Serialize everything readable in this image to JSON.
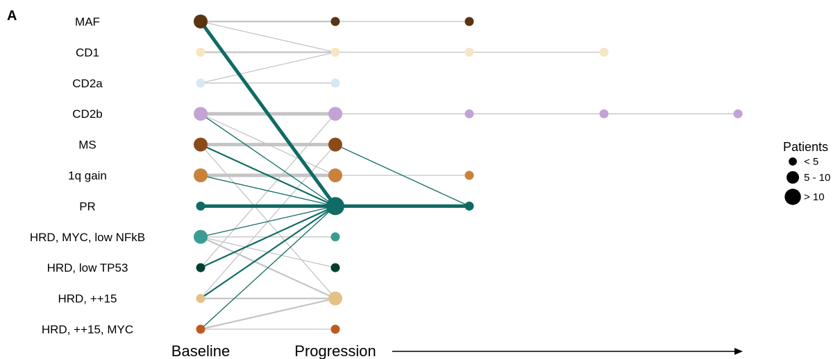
{
  "panel_letter": "A",
  "chart_data": {
    "type": "network",
    "title": "",
    "x_stages": [
      "Baseline",
      "Progression"
    ],
    "progression_arrow": true,
    "subtypes": [
      {
        "name": "MAF",
        "color": "#5a3412"
      },
      {
        "name": "CD1",
        "color": "#f7e6c4"
      },
      {
        "name": "CD2a",
        "color": "#d6e8f2"
      },
      {
        "name": "CD2b",
        "color": "#c3a3d4"
      },
      {
        "name": "MS",
        "color": "#8a4a1a"
      },
      {
        "name": "1q gain",
        "color": "#c9823c"
      },
      {
        "name": "PR",
        "color": "#0f6b63"
      },
      {
        "name": "HRD, MYC, low NFkB",
        "color": "#3a9d93"
      },
      {
        "name": "HRD, low TP53",
        "color": "#053d32"
      },
      {
        "name": "HRD, ++15",
        "color": "#e3c285"
      },
      {
        "name": "HRD, ++15, MYC",
        "color": "#bf5a1f"
      }
    ],
    "nodes": [
      {
        "row": 0,
        "stage": 0,
        "size": "5 - 10"
      },
      {
        "row": 0,
        "stage": 1,
        "size": "< 5"
      },
      {
        "row": 0,
        "stage": 2,
        "size": "< 5"
      },
      {
        "row": 1,
        "stage": 0,
        "size": "< 5"
      },
      {
        "row": 1,
        "stage": 1,
        "size": "< 5"
      },
      {
        "row": 1,
        "stage": 2,
        "size": "< 5"
      },
      {
        "row": 1,
        "stage": 3,
        "size": "< 5"
      },
      {
        "row": 2,
        "stage": 0,
        "size": "< 5"
      },
      {
        "row": 2,
        "stage": 1,
        "size": "< 5"
      },
      {
        "row": 3,
        "stage": 0,
        "size": "5 - 10"
      },
      {
        "row": 3,
        "stage": 1,
        "size": "5 - 10"
      },
      {
        "row": 3,
        "stage": 2,
        "size": "< 5"
      },
      {
        "row": 3,
        "stage": 3,
        "size": "< 5"
      },
      {
        "row": 3,
        "stage": 4,
        "size": "< 5"
      },
      {
        "row": 4,
        "stage": 0,
        "size": "5 - 10"
      },
      {
        "row": 4,
        "stage": 1,
        "size": "5 - 10"
      },
      {
        "row": 5,
        "stage": 0,
        "size": "5 - 10"
      },
      {
        "row": 5,
        "stage": 1,
        "size": "5 - 10"
      },
      {
        "row": 5,
        "stage": 2,
        "size": "< 5"
      },
      {
        "row": 6,
        "stage": 0,
        "size": "< 5"
      },
      {
        "row": 6,
        "stage": 1,
        "size": "> 10"
      },
      {
        "row": 6,
        "stage": 2,
        "size": "< 5"
      },
      {
        "row": 7,
        "stage": 0,
        "size": "5 - 10"
      },
      {
        "row": 7,
        "stage": 1,
        "size": "< 5"
      },
      {
        "row": 8,
        "stage": 0,
        "size": "< 5"
      },
      {
        "row": 8,
        "stage": 1,
        "size": "< 5"
      },
      {
        "row": 9,
        "stage": 0,
        "size": "< 5"
      },
      {
        "row": 9,
        "stage": 1,
        "size": "5 - 10"
      },
      {
        "row": 10,
        "stage": 0,
        "size": "< 5"
      },
      {
        "row": 10,
        "stage": 1,
        "size": "< 5"
      }
    ],
    "transitions": [
      {
        "from": [
          0,
          0
        ],
        "to": [
          0,
          1
        ],
        "kind": "same",
        "weight": "medium"
      },
      {
        "from": [
          0,
          1
        ],
        "to": [
          0,
          2
        ],
        "kind": "same",
        "weight": "light"
      },
      {
        "from": [
          0,
          0
        ],
        "to": [
          6,
          1
        ],
        "kind": "to_pr",
        "weight": "heavy"
      },
      {
        "from": [
          1,
          0
        ],
        "to": [
          1,
          1
        ],
        "kind": "same",
        "weight": "medium"
      },
      {
        "from": [
          1,
          1
        ],
        "to": [
          1,
          2
        ],
        "kind": "same",
        "weight": "light"
      },
      {
        "from": [
          1,
          2
        ],
        "to": [
          1,
          3
        ],
        "kind": "same",
        "weight": "light"
      },
      {
        "from": [
          0,
          0
        ],
        "to": [
          1,
          1
        ],
        "kind": "cross",
        "weight": "light"
      },
      {
        "from": [
          2,
          0
        ],
        "to": [
          1,
          1
        ],
        "kind": "cross",
        "weight": "light"
      },
      {
        "from": [
          2,
          0
        ],
        "to": [
          2,
          1
        ],
        "kind": "same",
        "weight": "light"
      },
      {
        "from": [
          3,
          0
        ],
        "to": [
          3,
          1
        ],
        "kind": "same",
        "weight": "heavy"
      },
      {
        "from": [
          3,
          1
        ],
        "to": [
          3,
          2
        ],
        "kind": "same",
        "weight": "light"
      },
      {
        "from": [
          3,
          2
        ],
        "to": [
          3,
          3
        ],
        "kind": "same",
        "weight": "light"
      },
      {
        "from": [
          3,
          3
        ],
        "to": [
          3,
          4
        ],
        "kind": "same",
        "weight": "light"
      },
      {
        "from": [
          3,
          0
        ],
        "to": [
          6,
          1
        ],
        "kind": "to_pr",
        "weight": "light"
      },
      {
        "from": [
          3,
          0
        ],
        "to": [
          5,
          1
        ],
        "kind": "cross",
        "weight": "light"
      },
      {
        "from": [
          4,
          0
        ],
        "to": [
          4,
          1
        ],
        "kind": "same",
        "weight": "heavy"
      },
      {
        "from": [
          4,
          0
        ],
        "to": [
          6,
          1
        ],
        "kind": "to_pr",
        "weight": "medium"
      },
      {
        "from": [
          4,
          0
        ],
        "to": [
          9,
          1
        ],
        "kind": "cross",
        "weight": "light"
      },
      {
        "from": [
          4,
          1
        ],
        "to": [
          6,
          2
        ],
        "kind": "to_pr",
        "weight": "light"
      },
      {
        "from": [
          5,
          0
        ],
        "to": [
          5,
          1
        ],
        "kind": "same",
        "weight": "heavy"
      },
      {
        "from": [
          5,
          0
        ],
        "to": [
          6,
          1
        ],
        "kind": "to_pr",
        "weight": "light"
      },
      {
        "from": [
          5,
          1
        ],
        "to": [
          5,
          2
        ],
        "kind": "same",
        "weight": "light"
      },
      {
        "from": [
          6,
          0
        ],
        "to": [
          6,
          1
        ],
        "kind": "same_pr",
        "weight": "heavy"
      },
      {
        "from": [
          6,
          1
        ],
        "to": [
          6,
          2
        ],
        "kind": "same_pr",
        "weight": "heavy"
      },
      {
        "from": [
          7,
          0
        ],
        "to": [
          6,
          1
        ],
        "kind": "to_pr",
        "weight": "light"
      },
      {
        "from": [
          7,
          0
        ],
        "to": [
          7,
          1
        ],
        "kind": "same",
        "weight": "light"
      },
      {
        "from": [
          7,
          0
        ],
        "to": [
          8,
          1
        ],
        "kind": "cross",
        "weight": "light"
      },
      {
        "from": [
          7,
          0
        ],
        "to": [
          9,
          1
        ],
        "kind": "cross",
        "weight": "medium"
      },
      {
        "from": [
          8,
          0
        ],
        "to": [
          6,
          1
        ],
        "kind": "to_pr",
        "weight": "medium"
      },
      {
        "from": [
          8,
          0
        ],
        "to": [
          3,
          1
        ],
        "kind": "cross",
        "weight": "light"
      },
      {
        "from": [
          9,
          0
        ],
        "to": [
          6,
          1
        ],
        "kind": "to_pr",
        "weight": "medium"
      },
      {
        "from": [
          9,
          0
        ],
        "to": [
          9,
          1
        ],
        "kind": "same",
        "weight": "medium"
      },
      {
        "from": [
          9,
          0
        ],
        "to": [
          4,
          1
        ],
        "kind": "cross",
        "weight": "light"
      },
      {
        "from": [
          10,
          0
        ],
        "to": [
          6,
          1
        ],
        "kind": "to_pr",
        "weight": "light"
      },
      {
        "from": [
          10,
          0
        ],
        "to": [
          9,
          1
        ],
        "kind": "cross",
        "weight": "medium"
      },
      {
        "from": [
          10,
          0
        ],
        "to": [
          10,
          1
        ],
        "kind": "same",
        "weight": "light"
      }
    ],
    "legend": {
      "title": "Patients",
      "position": "right",
      "entries": [
        {
          "label": "< 5",
          "size": "< 5"
        },
        {
          "label": "5 - 10",
          "size": "5 - 10"
        },
        {
          "label": "> 10",
          "size": "> 10"
        }
      ]
    },
    "colors": {
      "transition_to_pr": "#0f6b63",
      "transition_other": "#c4c4c4",
      "arrow": "#000000"
    }
  }
}
